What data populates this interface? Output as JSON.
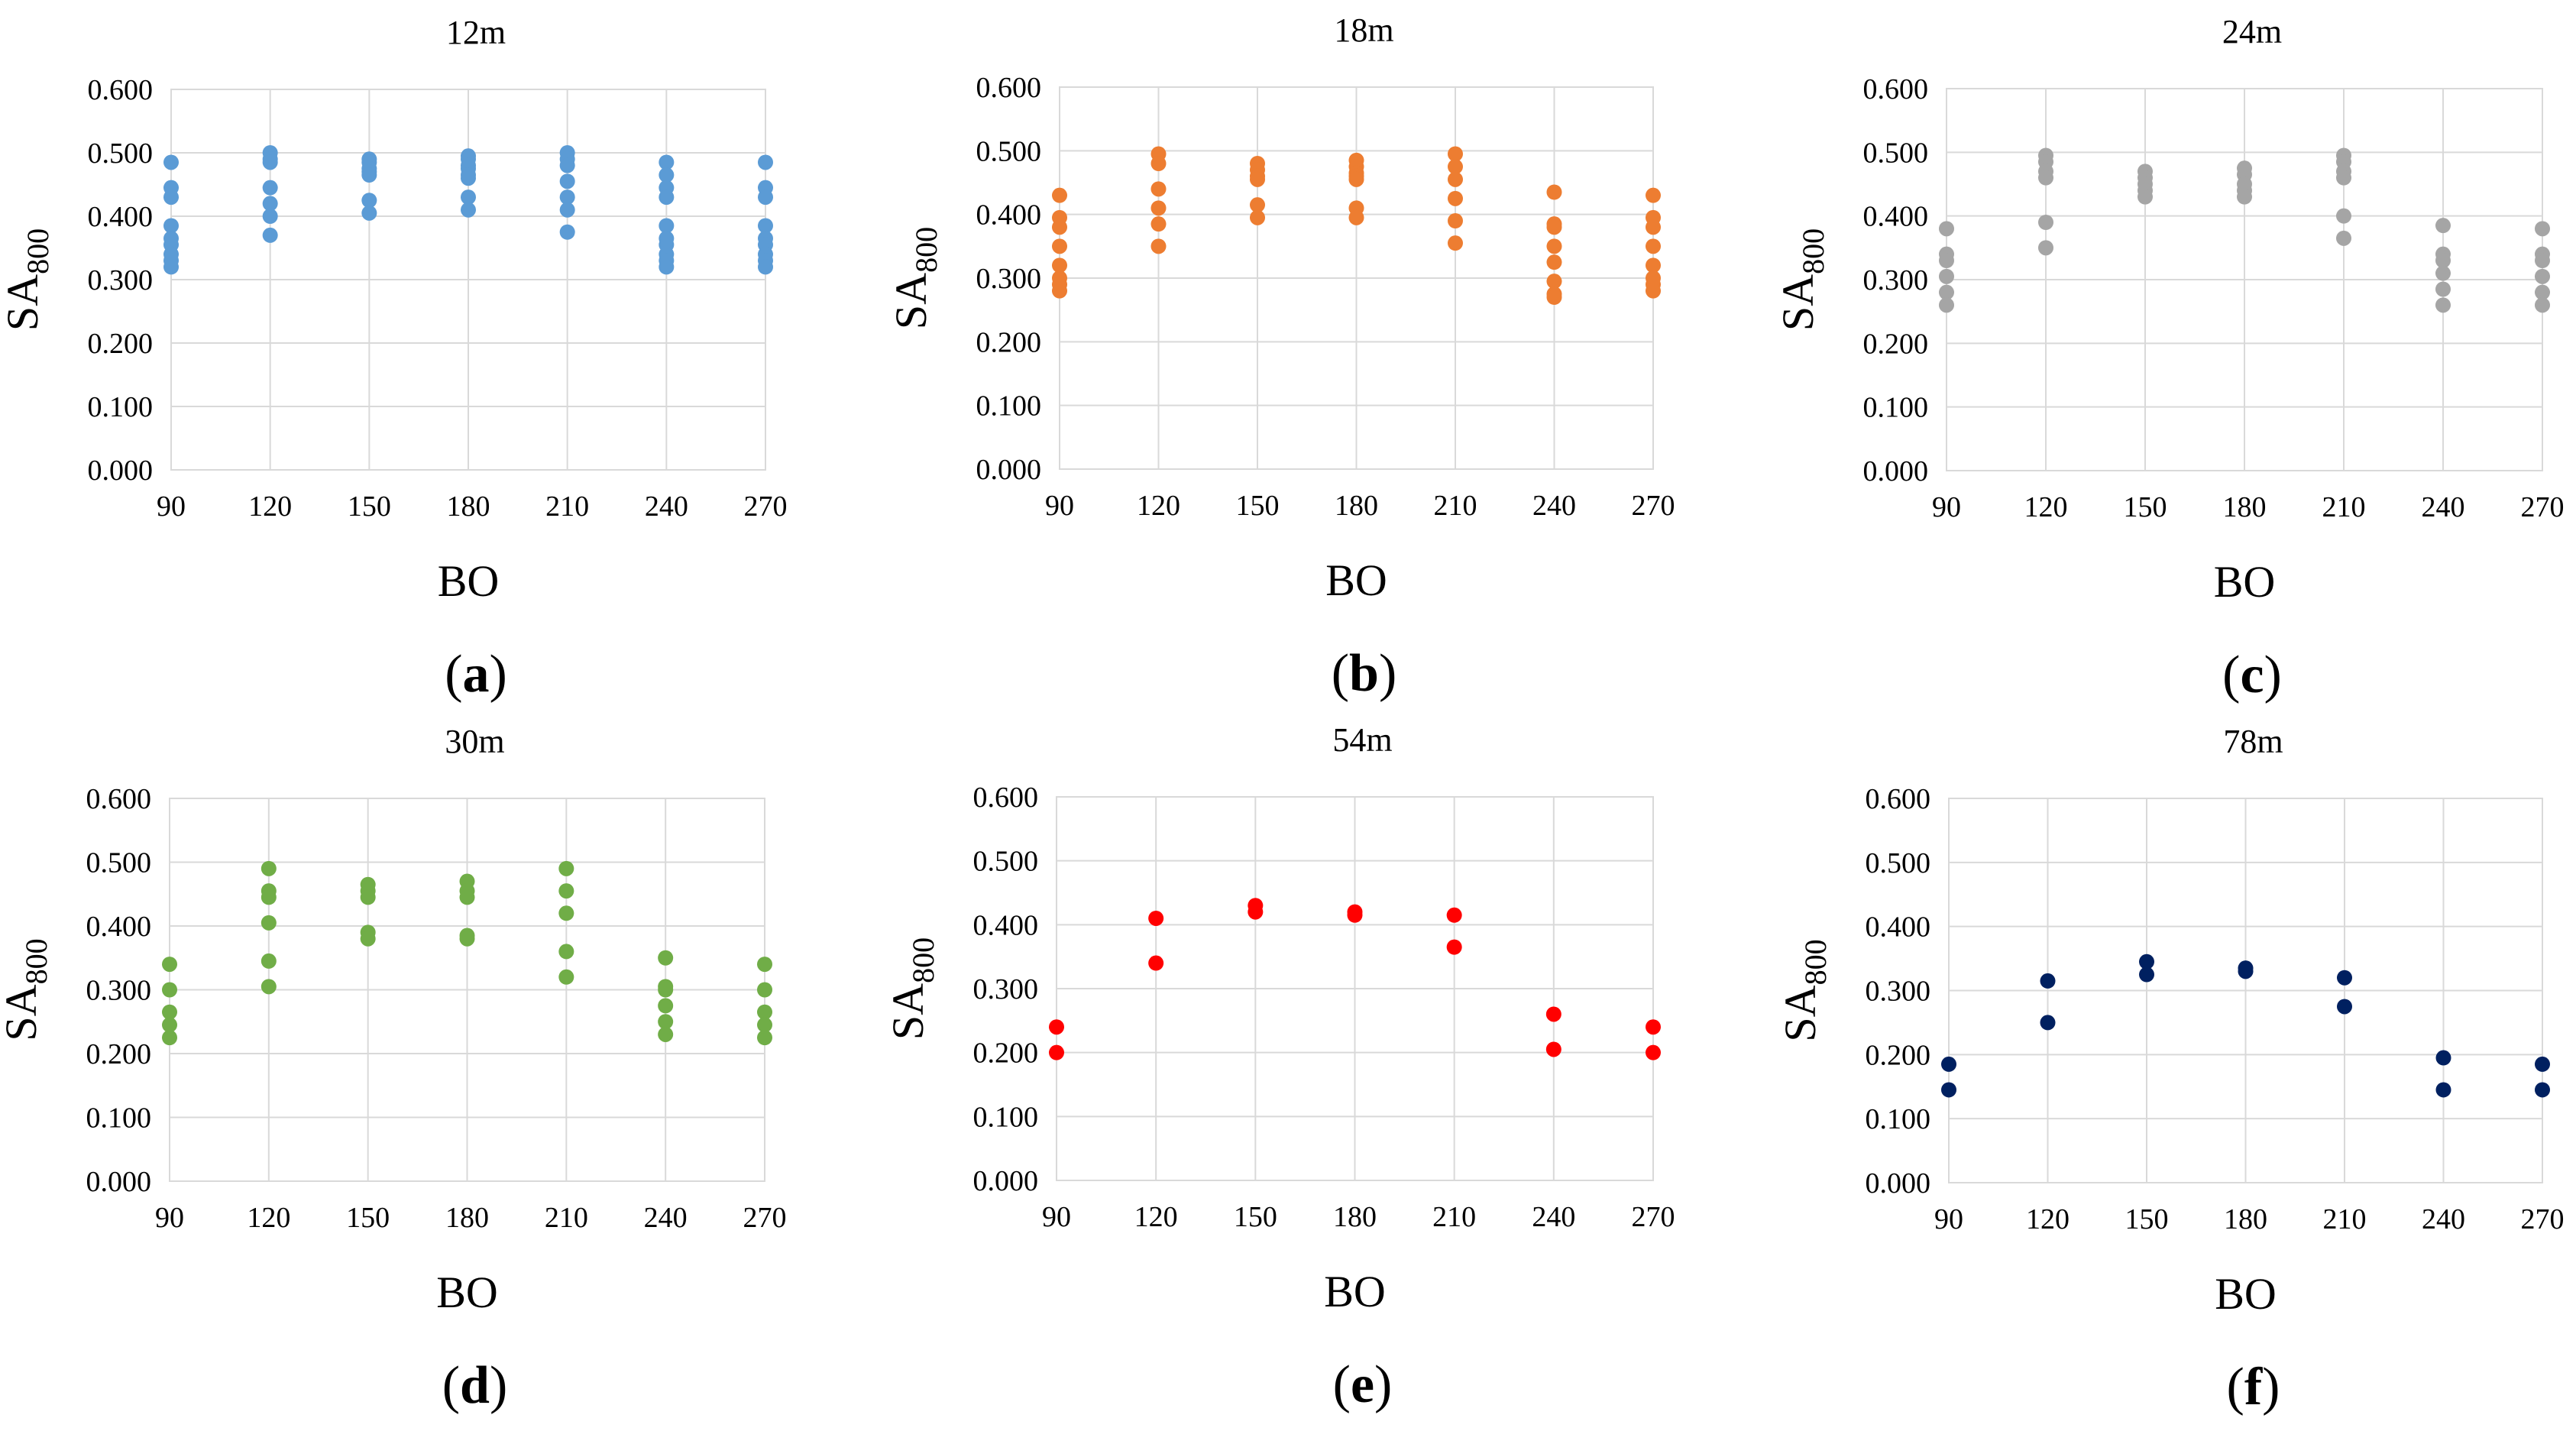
{
  "chart_data": [
    {
      "type": "scatter",
      "title": "12m",
      "panel_label": "a",
      "color": "#5b9bd5",
      "xlabel": "BO",
      "ylabel_main": "SA",
      "ylabel_sub": "800",
      "x_ticks": [
        "90",
        "120",
        "150",
        "180",
        "210",
        "240",
        "270"
      ],
      "y_ticks": [
        "0.000",
        "0.100",
        "0.200",
        "0.300",
        "0.400",
        "0.500",
        "0.600"
      ],
      "xlim": [
        90,
        270
      ],
      "ylim": [
        0,
        0.6
      ],
      "grid": true,
      "points": [
        {
          "x": 90,
          "y": 0.485
        },
        {
          "x": 90,
          "y": 0.445
        },
        {
          "x": 90,
          "y": 0.43
        },
        {
          "x": 90,
          "y": 0.385
        },
        {
          "x": 90,
          "y": 0.365
        },
        {
          "x": 90,
          "y": 0.355
        },
        {
          "x": 90,
          "y": 0.34
        },
        {
          "x": 90,
          "y": 0.33
        },
        {
          "x": 90,
          "y": 0.32
        },
        {
          "x": 120,
          "y": 0.5
        },
        {
          "x": 120,
          "y": 0.49
        },
        {
          "x": 120,
          "y": 0.485
        },
        {
          "x": 120,
          "y": 0.445
        },
        {
          "x": 120,
          "y": 0.42
        },
        {
          "x": 120,
          "y": 0.4
        },
        {
          "x": 120,
          "y": 0.37
        },
        {
          "x": 150,
          "y": 0.49
        },
        {
          "x": 150,
          "y": 0.485
        },
        {
          "x": 150,
          "y": 0.475
        },
        {
          "x": 150,
          "y": 0.47
        },
        {
          "x": 150,
          "y": 0.465
        },
        {
          "x": 150,
          "y": 0.425
        },
        {
          "x": 150,
          "y": 0.405
        },
        {
          "x": 180,
          "y": 0.495
        },
        {
          "x": 180,
          "y": 0.49
        },
        {
          "x": 180,
          "y": 0.48
        },
        {
          "x": 180,
          "y": 0.475
        },
        {
          "x": 180,
          "y": 0.465
        },
        {
          "x": 180,
          "y": 0.46
        },
        {
          "x": 180,
          "y": 0.43
        },
        {
          "x": 180,
          "y": 0.41
        },
        {
          "x": 210,
          "y": 0.5
        },
        {
          "x": 210,
          "y": 0.49
        },
        {
          "x": 210,
          "y": 0.48
        },
        {
          "x": 210,
          "y": 0.455
        },
        {
          "x": 210,
          "y": 0.43
        },
        {
          "x": 210,
          "y": 0.41
        },
        {
          "x": 210,
          "y": 0.375
        },
        {
          "x": 240,
          "y": 0.485
        },
        {
          "x": 240,
          "y": 0.465
        },
        {
          "x": 240,
          "y": 0.445
        },
        {
          "x": 240,
          "y": 0.43
        },
        {
          "x": 240,
          "y": 0.385
        },
        {
          "x": 240,
          "y": 0.365
        },
        {
          "x": 240,
          "y": 0.355
        },
        {
          "x": 240,
          "y": 0.34
        },
        {
          "x": 240,
          "y": 0.33
        },
        {
          "x": 240,
          "y": 0.32
        },
        {
          "x": 270,
          "y": 0.485
        },
        {
          "x": 270,
          "y": 0.445
        },
        {
          "x": 270,
          "y": 0.43
        },
        {
          "x": 270,
          "y": 0.385
        },
        {
          "x": 270,
          "y": 0.365
        },
        {
          "x": 270,
          "y": 0.355
        },
        {
          "x": 270,
          "y": 0.34
        },
        {
          "x": 270,
          "y": 0.33
        },
        {
          "x": 270,
          "y": 0.32
        }
      ]
    },
    {
      "type": "scatter",
      "title": "18m",
      "panel_label": "b",
      "color": "#ed7d31",
      "xlabel": "BO",
      "ylabel_main": "SA",
      "ylabel_sub": "800",
      "x_ticks": [
        "90",
        "120",
        "150",
        "180",
        "210",
        "240",
        "270"
      ],
      "y_ticks": [
        "0.000",
        "0.100",
        "0.200",
        "0.300",
        "0.400",
        "0.500",
        "0.600"
      ],
      "xlim": [
        90,
        270
      ],
      "ylim": [
        0,
        0.6
      ],
      "grid": true,
      "points": [
        {
          "x": 90,
          "y": 0.43
        },
        {
          "x": 90,
          "y": 0.395
        },
        {
          "x": 90,
          "y": 0.38
        },
        {
          "x": 90,
          "y": 0.35
        },
        {
          "x": 90,
          "y": 0.32
        },
        {
          "x": 90,
          "y": 0.3
        },
        {
          "x": 90,
          "y": 0.29
        },
        {
          "x": 90,
          "y": 0.28
        },
        {
          "x": 120,
          "y": 0.495
        },
        {
          "x": 120,
          "y": 0.48
        },
        {
          "x": 120,
          "y": 0.44
        },
        {
          "x": 120,
          "y": 0.41
        },
        {
          "x": 120,
          "y": 0.385
        },
        {
          "x": 120,
          "y": 0.35
        },
        {
          "x": 150,
          "y": 0.48
        },
        {
          "x": 150,
          "y": 0.47
        },
        {
          "x": 150,
          "y": 0.46
        },
        {
          "x": 150,
          "y": 0.455
        },
        {
          "x": 150,
          "y": 0.415
        },
        {
          "x": 150,
          "y": 0.395
        },
        {
          "x": 180,
          "y": 0.485
        },
        {
          "x": 180,
          "y": 0.475
        },
        {
          "x": 180,
          "y": 0.465
        },
        {
          "x": 180,
          "y": 0.46
        },
        {
          "x": 180,
          "y": 0.455
        },
        {
          "x": 180,
          "y": 0.41
        },
        {
          "x": 180,
          "y": 0.395
        },
        {
          "x": 210,
          "y": 0.495
        },
        {
          "x": 210,
          "y": 0.475
        },
        {
          "x": 210,
          "y": 0.455
        },
        {
          "x": 210,
          "y": 0.425
        },
        {
          "x": 210,
          "y": 0.39
        },
        {
          "x": 210,
          "y": 0.355
        },
        {
          "x": 240,
          "y": 0.435
        },
        {
          "x": 240,
          "y": 0.385
        },
        {
          "x": 240,
          "y": 0.38
        },
        {
          "x": 240,
          "y": 0.35
        },
        {
          "x": 240,
          "y": 0.325
        },
        {
          "x": 240,
          "y": 0.295
        },
        {
          "x": 240,
          "y": 0.275
        },
        {
          "x": 240,
          "y": 0.27
        },
        {
          "x": 270,
          "y": 0.43
        },
        {
          "x": 270,
          "y": 0.395
        },
        {
          "x": 270,
          "y": 0.38
        },
        {
          "x": 270,
          "y": 0.35
        },
        {
          "x": 270,
          "y": 0.32
        },
        {
          "x": 270,
          "y": 0.3
        },
        {
          "x": 270,
          "y": 0.29
        },
        {
          "x": 270,
          "y": 0.28
        }
      ]
    },
    {
      "type": "scatter",
      "title": "24m",
      "panel_label": "c",
      "color": "#a5a5a5",
      "xlabel": "BO",
      "ylabel_main": "SA",
      "ylabel_sub": "800",
      "x_ticks": [
        "90",
        "120",
        "150",
        "180",
        "210",
        "240",
        "270"
      ],
      "y_ticks": [
        "0.000",
        "0.100",
        "0.200",
        "0.300",
        "0.400",
        "0.500",
        "0.600"
      ],
      "xlim": [
        90,
        270
      ],
      "ylim": [
        0,
        0.6
      ],
      "grid": true,
      "points": [
        {
          "x": 90,
          "y": 0.38
        },
        {
          "x": 90,
          "y": 0.34
        },
        {
          "x": 90,
          "y": 0.33
        },
        {
          "x": 90,
          "y": 0.305
        },
        {
          "x": 90,
          "y": 0.28
        },
        {
          "x": 90,
          "y": 0.26
        },
        {
          "x": 120,
          "y": 0.495
        },
        {
          "x": 120,
          "y": 0.485
        },
        {
          "x": 120,
          "y": 0.47
        },
        {
          "x": 120,
          "y": 0.46
        },
        {
          "x": 120,
          "y": 0.39
        },
        {
          "x": 120,
          "y": 0.35
        },
        {
          "x": 150,
          "y": 0.47
        },
        {
          "x": 150,
          "y": 0.46
        },
        {
          "x": 150,
          "y": 0.45
        },
        {
          "x": 150,
          "y": 0.44
        },
        {
          "x": 150,
          "y": 0.43
        },
        {
          "x": 180,
          "y": 0.475
        },
        {
          "x": 180,
          "y": 0.465
        },
        {
          "x": 180,
          "y": 0.45
        },
        {
          "x": 180,
          "y": 0.44
        },
        {
          "x": 180,
          "y": 0.43
        },
        {
          "x": 210,
          "y": 0.495
        },
        {
          "x": 210,
          "y": 0.485
        },
        {
          "x": 210,
          "y": 0.47
        },
        {
          "x": 210,
          "y": 0.46
        },
        {
          "x": 210,
          "y": 0.4
        },
        {
          "x": 210,
          "y": 0.365
        },
        {
          "x": 240,
          "y": 0.385
        },
        {
          "x": 240,
          "y": 0.34
        },
        {
          "x": 240,
          "y": 0.33
        },
        {
          "x": 240,
          "y": 0.31
        },
        {
          "x": 240,
          "y": 0.285
        },
        {
          "x": 240,
          "y": 0.26
        },
        {
          "x": 270,
          "y": 0.38
        },
        {
          "x": 270,
          "y": 0.34
        },
        {
          "x": 270,
          "y": 0.33
        },
        {
          "x": 270,
          "y": 0.305
        },
        {
          "x": 270,
          "y": 0.28
        },
        {
          "x": 270,
          "y": 0.26
        }
      ]
    },
    {
      "type": "scatter",
      "title": "30m",
      "panel_label": "d",
      "color": "#70ad47",
      "xlabel": "BO",
      "ylabel_main": "SA",
      "ylabel_sub": "800",
      "x_ticks": [
        "90",
        "120",
        "150",
        "180",
        "210",
        "240",
        "270"
      ],
      "y_ticks": [
        "0.000",
        "0.100",
        "0.200",
        "0.300",
        "0.400",
        "0.500",
        "0.600"
      ],
      "xlim": [
        90,
        270
      ],
      "ylim": [
        0,
        0.6
      ],
      "grid": true,
      "points": [
        {
          "x": 90,
          "y": 0.34
        },
        {
          "x": 90,
          "y": 0.3
        },
        {
          "x": 90,
          "y": 0.265
        },
        {
          "x": 90,
          "y": 0.245
        },
        {
          "x": 90,
          "y": 0.225
        },
        {
          "x": 120,
          "y": 0.49
        },
        {
          "x": 120,
          "y": 0.455
        },
        {
          "x": 120,
          "y": 0.445
        },
        {
          "x": 120,
          "y": 0.405
        },
        {
          "x": 120,
          "y": 0.345
        },
        {
          "x": 120,
          "y": 0.305
        },
        {
          "x": 150,
          "y": 0.465
        },
        {
          "x": 150,
          "y": 0.455
        },
        {
          "x": 150,
          "y": 0.445
        },
        {
          "x": 150,
          "y": 0.39
        },
        {
          "x": 150,
          "y": 0.38
        },
        {
          "x": 180,
          "y": 0.47
        },
        {
          "x": 180,
          "y": 0.455
        },
        {
          "x": 180,
          "y": 0.445
        },
        {
          "x": 180,
          "y": 0.385
        },
        {
          "x": 180,
          "y": 0.38
        },
        {
          "x": 210,
          "y": 0.49
        },
        {
          "x": 210,
          "y": 0.455
        },
        {
          "x": 210,
          "y": 0.42
        },
        {
          "x": 210,
          "y": 0.36
        },
        {
          "x": 210,
          "y": 0.32
        },
        {
          "x": 240,
          "y": 0.35
        },
        {
          "x": 240,
          "y": 0.305
        },
        {
          "x": 240,
          "y": 0.3
        },
        {
          "x": 240,
          "y": 0.275
        },
        {
          "x": 240,
          "y": 0.25
        },
        {
          "x": 240,
          "y": 0.23
        },
        {
          "x": 270,
          "y": 0.34
        },
        {
          "x": 270,
          "y": 0.3
        },
        {
          "x": 270,
          "y": 0.265
        },
        {
          "x": 270,
          "y": 0.245
        },
        {
          "x": 270,
          "y": 0.225
        }
      ]
    },
    {
      "type": "scatter",
      "title": "54m",
      "panel_label": "e",
      "color": "#ff0000",
      "xlabel": "BO",
      "ylabel_main": "SA",
      "ylabel_sub": "800",
      "x_ticks": [
        "90",
        "120",
        "150",
        "180",
        "210",
        "240",
        "270"
      ],
      "y_ticks": [
        "0.000",
        "0.100",
        "0.200",
        "0.300",
        "0.400",
        "0.500",
        "0.600"
      ],
      "xlim": [
        90,
        270
      ],
      "ylim": [
        0,
        0.6
      ],
      "grid": true,
      "points": [
        {
          "x": 90,
          "y": 0.24
        },
        {
          "x": 90,
          "y": 0.2
        },
        {
          "x": 120,
          "y": 0.41
        },
        {
          "x": 120,
          "y": 0.34
        },
        {
          "x": 150,
          "y": 0.43
        },
        {
          "x": 150,
          "y": 0.42
        },
        {
          "x": 180,
          "y": 0.42
        },
        {
          "x": 180,
          "y": 0.415
        },
        {
          "x": 210,
          "y": 0.415
        },
        {
          "x": 210,
          "y": 0.365
        },
        {
          "x": 240,
          "y": 0.26
        },
        {
          "x": 240,
          "y": 0.205
        },
        {
          "x": 270,
          "y": 0.24
        },
        {
          "x": 270,
          "y": 0.2
        }
      ]
    },
    {
      "type": "scatter",
      "title": "78m",
      "panel_label": "f",
      "color": "#002060",
      "xlabel": "BO",
      "ylabel_main": "SA",
      "ylabel_sub": "800",
      "x_ticks": [
        "90",
        "120",
        "150",
        "180",
        "210",
        "240",
        "270"
      ],
      "y_ticks": [
        "0.000",
        "0.100",
        "0.200",
        "0.300",
        "0.400",
        "0.500",
        "0.600"
      ],
      "xlim": [
        90,
        270
      ],
      "ylim": [
        0,
        0.6
      ],
      "grid": true,
      "points": [
        {
          "x": 90,
          "y": 0.185
        },
        {
          "x": 90,
          "y": 0.145
        },
        {
          "x": 120,
          "y": 0.315
        },
        {
          "x": 120,
          "y": 0.25
        },
        {
          "x": 150,
          "y": 0.345
        },
        {
          "x": 150,
          "y": 0.325
        },
        {
          "x": 180,
          "y": 0.335
        },
        {
          "x": 180,
          "y": 0.33
        },
        {
          "x": 210,
          "y": 0.32
        },
        {
          "x": 210,
          "y": 0.275
        },
        {
          "x": 240,
          "y": 0.195
        },
        {
          "x": 240,
          "y": 0.145
        },
        {
          "x": 270,
          "y": 0.185
        },
        {
          "x": 270,
          "y": 0.145
        }
      ]
    }
  ]
}
